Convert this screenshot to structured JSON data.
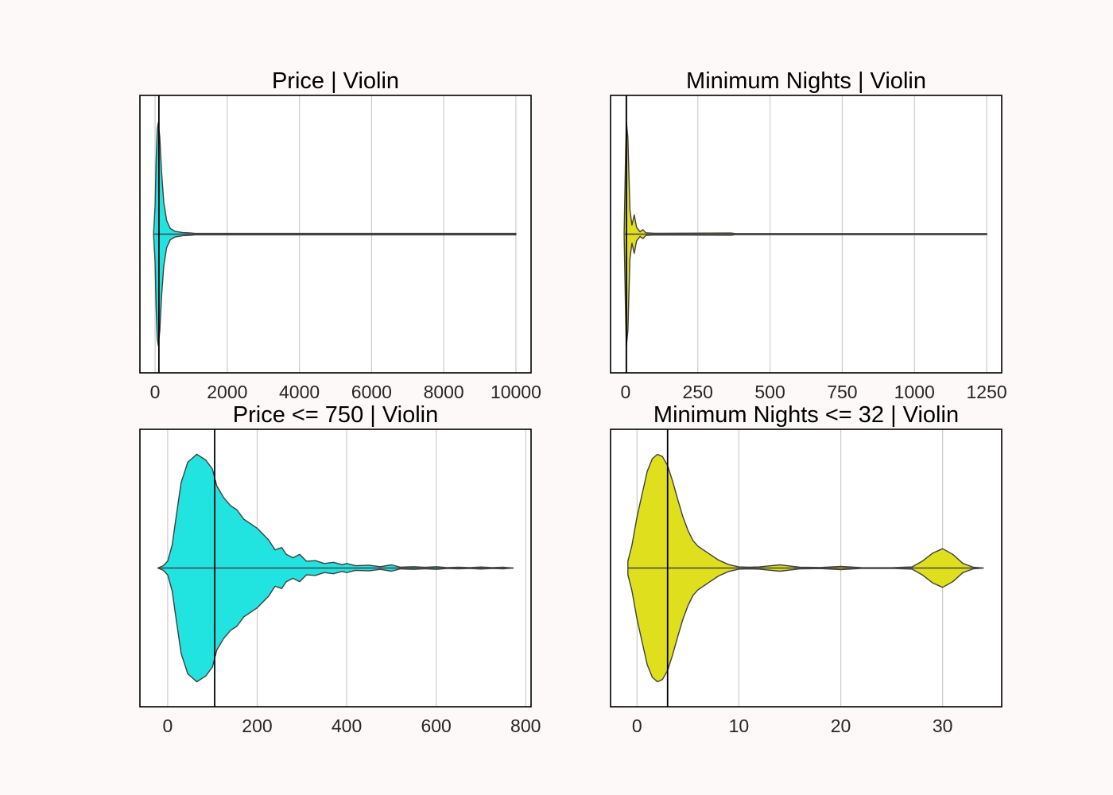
{
  "chart_data": [
    {
      "type": "violin",
      "title": "Price | Violin",
      "fill_color": "#21e3e0",
      "xlim": [
        -420,
        10420
      ],
      "xticks": [
        0,
        2000,
        4000,
        6000,
        8000,
        10000
      ],
      "xtick_labels": [
        "0",
        "2000",
        "4000",
        "6000",
        "8000",
        "10000"
      ],
      "grid": true,
      "min": -40,
      "max": 10000,
      "median_line": 106,
      "density": [
        {
          "x": -40,
          "w": 0.01
        },
        {
          "x": 0,
          "w": 0.25
        },
        {
          "x": 30,
          "w": 0.65
        },
        {
          "x": 60,
          "w": 0.92
        },
        {
          "x": 90,
          "w": 0.98
        },
        {
          "x": 130,
          "w": 0.85
        },
        {
          "x": 180,
          "w": 0.55
        },
        {
          "x": 240,
          "w": 0.28
        },
        {
          "x": 320,
          "w": 0.12
        },
        {
          "x": 420,
          "w": 0.05
        },
        {
          "x": 550,
          "w": 0.025
        },
        {
          "x": 750,
          "w": 0.015
        },
        {
          "x": 1000,
          "w": 0.01
        },
        {
          "x": 1100,
          "w": 0.006
        },
        {
          "x": 10000,
          "w": 0.006
        }
      ]
    },
    {
      "type": "violin",
      "title": "Minimum Nights | Violin",
      "fill_color": "#dfdf1e",
      "xlim": [
        -52,
        1302
      ],
      "xticks": [
        0,
        250,
        500,
        750,
        1000,
        1250
      ],
      "xtick_labels": [
        "0",
        "250",
        "500",
        "750",
        "1000",
        "1250"
      ],
      "grid": true,
      "min": -5,
      "max": 1250,
      "median_line": 3,
      "density": [
        {
          "x": -5,
          "w": 0.01
        },
        {
          "x": 0,
          "w": 0.7
        },
        {
          "x": 3,
          "w": 0.98
        },
        {
          "x": 8,
          "w": 0.85
        },
        {
          "x": 15,
          "w": 0.22
        },
        {
          "x": 22,
          "w": 0.08
        },
        {
          "x": 30,
          "w": 0.17
        },
        {
          "x": 38,
          "w": 0.06
        },
        {
          "x": 50,
          "w": 0.02
        },
        {
          "x": 60,
          "w": 0.04
        },
        {
          "x": 70,
          "w": 0.012
        },
        {
          "x": 100,
          "w": 0.008
        },
        {
          "x": 365,
          "w": 0.01
        },
        {
          "x": 380,
          "w": 0.005
        },
        {
          "x": 1250,
          "w": 0.005
        }
      ]
    },
    {
      "type": "violin",
      "title": "Price <= 750 | Violin",
      "fill_color": "#21e3e0",
      "xlim": [
        -62,
        812
      ],
      "xticks": [
        0,
        200,
        400,
        600,
        800
      ],
      "xtick_labels": [
        "0",
        "200",
        "400",
        "600",
        "800"
      ],
      "grid": true,
      "min": -22,
      "max": 772,
      "median_line": 105,
      "density": [
        {
          "x": -22,
          "w": 0.0
        },
        {
          "x": -10,
          "w": 0.02
        },
        {
          "x": 0,
          "w": 0.06
        },
        {
          "x": 10,
          "w": 0.2
        },
        {
          "x": 20,
          "w": 0.48
        },
        {
          "x": 30,
          "w": 0.75
        },
        {
          "x": 45,
          "w": 0.93
        },
        {
          "x": 65,
          "w": 1.0
        },
        {
          "x": 85,
          "w": 0.95
        },
        {
          "x": 100,
          "w": 0.87
        },
        {
          "x": 110,
          "w": 0.72
        },
        {
          "x": 125,
          "w": 0.62
        },
        {
          "x": 140,
          "w": 0.55
        },
        {
          "x": 155,
          "w": 0.51
        },
        {
          "x": 170,
          "w": 0.43
        },
        {
          "x": 185,
          "w": 0.39
        },
        {
          "x": 200,
          "w": 0.35
        },
        {
          "x": 215,
          "w": 0.29
        },
        {
          "x": 225,
          "w": 0.25
        },
        {
          "x": 240,
          "w": 0.16
        },
        {
          "x": 255,
          "w": 0.18
        },
        {
          "x": 265,
          "w": 0.12
        },
        {
          "x": 280,
          "w": 0.09
        },
        {
          "x": 295,
          "w": 0.12
        },
        {
          "x": 310,
          "w": 0.06
        },
        {
          "x": 330,
          "w": 0.065
        },
        {
          "x": 350,
          "w": 0.04
        },
        {
          "x": 370,
          "w": 0.05
        },
        {
          "x": 390,
          "w": 0.03
        },
        {
          "x": 400,
          "w": 0.04
        },
        {
          "x": 420,
          "w": 0.02
        },
        {
          "x": 450,
          "w": 0.025
        },
        {
          "x": 475,
          "w": 0.012
        },
        {
          "x": 500,
          "w": 0.028
        },
        {
          "x": 520,
          "w": 0.008
        },
        {
          "x": 550,
          "w": 0.012
        },
        {
          "x": 575,
          "w": 0.006
        },
        {
          "x": 600,
          "w": 0.012
        },
        {
          "x": 625,
          "w": 0.004
        },
        {
          "x": 650,
          "w": 0.008
        },
        {
          "x": 675,
          "w": 0.004
        },
        {
          "x": 700,
          "w": 0.009
        },
        {
          "x": 725,
          "w": 0.004
        },
        {
          "x": 750,
          "w": 0.007
        },
        {
          "x": 772,
          "w": 0.0
        }
      ]
    },
    {
      "type": "violin",
      "title": "Minimum Nights <= 32 | Violin",
      "fill_color": "#dfdf1e",
      "xlim": [
        -2.6,
        35.8
      ],
      "xticks": [
        0,
        10,
        20,
        30
      ],
      "xtick_labels": [
        "0",
        "10",
        "20",
        "30"
      ],
      "grid": true,
      "min": -0.9,
      "max": 34,
      "median_line": 3,
      "density": [
        {
          "x": -0.9,
          "w": 0.06
        },
        {
          "x": -0.5,
          "w": 0.2
        },
        {
          "x": 0,
          "w": 0.45
        },
        {
          "x": 0.5,
          "w": 0.65
        },
        {
          "x": 1,
          "w": 0.85
        },
        {
          "x": 1.5,
          "w": 0.96
        },
        {
          "x": 2,
          "w": 1.0
        },
        {
          "x": 2.5,
          "w": 0.98
        },
        {
          "x": 3,
          "w": 0.9
        },
        {
          "x": 3.5,
          "w": 0.76
        },
        {
          "x": 4,
          "w": 0.6
        },
        {
          "x": 4.5,
          "w": 0.45
        },
        {
          "x": 5,
          "w": 0.33
        },
        {
          "x": 5.5,
          "w": 0.24
        },
        {
          "x": 6,
          "w": 0.19
        },
        {
          "x": 7,
          "w": 0.13
        },
        {
          "x": 8,
          "w": 0.07
        },
        {
          "x": 9,
          "w": 0.03
        },
        {
          "x": 10,
          "w": 0.01
        },
        {
          "x": 11,
          "w": 0.008
        },
        {
          "x": 12,
          "w": 0.01
        },
        {
          "x": 14,
          "w": 0.028
        },
        {
          "x": 16,
          "w": 0.008
        },
        {
          "x": 18,
          "w": 0.005
        },
        {
          "x": 20,
          "w": 0.015
        },
        {
          "x": 22,
          "w": 0.004
        },
        {
          "x": 25,
          "w": 0.003
        },
        {
          "x": 27,
          "w": 0.01
        },
        {
          "x": 28,
          "w": 0.06
        },
        {
          "x": 29,
          "w": 0.13
        },
        {
          "x": 30,
          "w": 0.17
        },
        {
          "x": 31,
          "w": 0.12
        },
        {
          "x": 32,
          "w": 0.04
        },
        {
          "x": 33,
          "w": 0.008
        },
        {
          "x": 34,
          "w": 0.0
        }
      ]
    }
  ]
}
